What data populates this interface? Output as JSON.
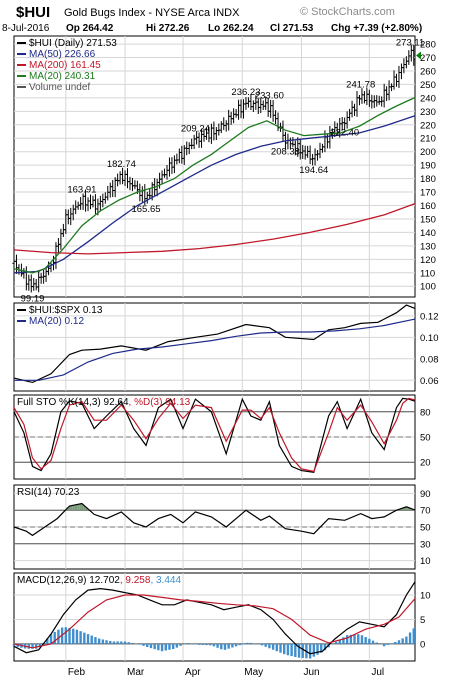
{
  "header": {
    "symbol": "$HUI",
    "name": "Gold Bugs Index - NYSE Arca INDX",
    "watermark": "© StockCharts.com",
    "date": "8-Jul-2016",
    "op": "Op 264.42",
    "hi": "Hi 272.26",
    "lo": "Lo 262.24",
    "cl": "Cl 271.53",
    "chg": "Chg +7.39 (+2.80%)"
  },
  "colors": {
    "price": "#000000",
    "ma50": "#1f2a8a",
    "ma200": "#c0182a",
    "ma20": "#1e7a1e",
    "grid": "#d6d6d6",
    "histogram": "#3f8fcf",
    "up_arrow": "#0a7f0a"
  },
  "chart_data": [
    {
      "type": "line",
      "panel": "price",
      "x_ticks": [
        "Feb",
        "Mar",
        "Apr",
        "May",
        "Jun",
        "Jul"
      ],
      "legend": [
        {
          "label": "$HUI (Daily) 271.53",
          "color": "#000000"
        },
        {
          "label": "MA(50) 226.66",
          "color": "#1f2a8a"
        },
        {
          "label": "MA(200) 161.45",
          "color": "#c0182a"
        },
        {
          "label": "MA(20) 240.31",
          "color": "#1e7a1e"
        },
        {
          "label": "Volume undef",
          "color": "#555555"
        }
      ],
      "y_ticks": [
        100,
        110,
        120,
        130,
        140,
        150,
        160,
        170,
        180,
        190,
        200,
        210,
        220,
        230,
        240,
        250,
        260,
        270,
        280
      ],
      "ylim": [
        92,
        286
      ],
      "annotations": [
        {
          "label": "99.19",
          "t": 15,
          "v": 99.19,
          "pos": "below"
        },
        {
          "label": "163.91",
          "t": 55,
          "v": 163.91,
          "pos": "above"
        },
        {
          "label": "182.74",
          "t": 87,
          "v": 182.74,
          "pos": "above"
        },
        {
          "label": "165.65",
          "t": 107,
          "v": 165.65,
          "pos": "below"
        },
        {
          "label": "209.24",
          "t": 147,
          "v": 209.24,
          "pos": "above"
        },
        {
          "label": "236.23",
          "t": 188,
          "v": 236.23,
          "pos": "above"
        },
        {
          "label": "233.60",
          "t": 207,
          "v": 233.6,
          "pos": "above"
        },
        {
          "label": "208.33",
          "t": 220,
          "v": 208.33,
          "pos": "below"
        },
        {
          "label": "194.64",
          "t": 243,
          "v": 194.64,
          "pos": "below"
        },
        {
          "label": "222.40",
          "t": 268,
          "v": 222.4,
          "pos": "below"
        },
        {
          "label": "241.78",
          "t": 281,
          "v": 241.78,
          "pos": "above"
        },
        {
          "label": "273.11",
          "t": 321,
          "v": 273.11,
          "pos": "above"
        }
      ],
      "series": [
        {
          "name": "$HUI (Daily)",
          "style": "ohlc",
          "t": [
            0,
            15,
            30,
            42,
            55,
            68,
            87,
            107,
            125,
            147,
            165,
            188,
            207,
            220,
            243,
            255,
            268,
            281,
            295,
            310,
            321,
            325
          ],
          "values": [
            117,
            99.19,
            115,
            150,
            163.91,
            160,
            182.74,
            165.65,
            188,
            209.24,
            216,
            236.23,
            233.6,
            208.33,
            194.64,
            212,
            222.4,
            241.78,
            236,
            255,
            273.11,
            271.53
          ]
        },
        {
          "name": "MA(50)",
          "t": [
            0,
            20,
            40,
            60,
            80,
            100,
            120,
            140,
            160,
            180,
            200,
            220,
            240,
            260,
            280,
            300,
            325
          ],
          "values": [
            110,
            111,
            120,
            133,
            147,
            160,
            170,
            180,
            190,
            198,
            204,
            208,
            210,
            212,
            214,
            219,
            226.66
          ]
        },
        {
          "name": "MA(200)",
          "t": [
            0,
            30,
            60,
            90,
            120,
            150,
            180,
            210,
            240,
            270,
            300,
            325
          ],
          "values": [
            127,
            125,
            124,
            125,
            126,
            128,
            131,
            135,
            140,
            146,
            153,
            161.45
          ]
        },
        {
          "name": "MA(20)",
          "t": [
            0,
            15,
            25,
            40,
            55,
            70,
            85,
            100,
            115,
            130,
            145,
            160,
            175,
            190,
            205,
            220,
            235,
            250,
            265,
            280,
            295,
            310,
            325
          ],
          "values": [
            113,
            110,
            113,
            128,
            145,
            156,
            164,
            170,
            174,
            180,
            190,
            198,
            208,
            218,
            223,
            216,
            212,
            213,
            214,
            219,
            227,
            234,
            240.31
          ]
        }
      ]
    },
    {
      "type": "line",
      "panel": "ratio",
      "legend": [
        {
          "label": "$HUI:$SPX 0.13",
          "color": "#000000"
        },
        {
          "label": "MA(20) 0.12",
          "color": "#1f2a8a"
        }
      ],
      "y_ticks": [
        0.06,
        0.08,
        0.1,
        0.12
      ],
      "ylim": [
        0.05,
        0.132
      ],
      "series": [
        {
          "name": "$HUI:$SPX",
          "t": [
            0,
            15,
            30,
            45,
            55,
            70,
            87,
            107,
            125,
            147,
            165,
            188,
            207,
            220,
            243,
            255,
            268,
            281,
            295,
            310,
            318,
            325
          ],
          "values": [
            0.062,
            0.058,
            0.066,
            0.084,
            0.088,
            0.089,
            0.092,
            0.088,
            0.096,
            0.1,
            0.103,
            0.112,
            0.109,
            0.1,
            0.098,
            0.107,
            0.109,
            0.113,
            0.114,
            0.123,
            0.13,
            0.127
          ]
        },
        {
          "name": "MA(20)",
          "t": [
            0,
            20,
            40,
            60,
            80,
            100,
            120,
            140,
            160,
            180,
            200,
            220,
            240,
            260,
            280,
            300,
            325
          ],
          "values": [
            0.06,
            0.06,
            0.065,
            0.077,
            0.085,
            0.089,
            0.091,
            0.094,
            0.097,
            0.101,
            0.104,
            0.105,
            0.105,
            0.106,
            0.108,
            0.111,
            0.117
          ]
        }
      ]
    },
    {
      "type": "line",
      "panel": "stochastic",
      "legend": [
        {
          "label": "Full STO %K(14,3) 92.64",
          "color": "#000000"
        },
        {
          "label": "%D(3) 94.13",
          "color": "#c0182a"
        }
      ],
      "y_ticks": [
        20,
        50,
        80
      ],
      "ylim": [
        0,
        100
      ],
      "series": [
        {
          "name": "%K",
          "t": [
            0,
            8,
            15,
            22,
            30,
            38,
            45,
            55,
            65,
            75,
            87,
            97,
            107,
            117,
            127,
            137,
            147,
            160,
            172,
            185,
            192,
            200,
            207,
            215,
            225,
            233,
            243,
            255,
            262,
            270,
            281,
            290,
            300,
            310,
            315,
            320,
            325
          ],
          "values": [
            80,
            55,
            15,
            10,
            30,
            80,
            93,
            90,
            60,
            75,
            92,
            60,
            40,
            85,
            95,
            60,
            95,
            80,
            30,
            95,
            75,
            70,
            92,
            40,
            15,
            10,
            8,
            75,
            92,
            60,
            95,
            55,
            35,
            85,
            96,
            95,
            92.64
          ]
        },
        {
          "name": "%D",
          "t": [
            0,
            8,
            15,
            22,
            30,
            38,
            45,
            55,
            65,
            75,
            87,
            97,
            107,
            117,
            127,
            137,
            147,
            160,
            172,
            185,
            192,
            200,
            207,
            215,
            225,
            233,
            243,
            255,
            262,
            270,
            281,
            290,
            300,
            310,
            315,
            320,
            325
          ],
          "values": [
            85,
            65,
            25,
            12,
            22,
            60,
            88,
            92,
            70,
            70,
            88,
            70,
            48,
            72,
            90,
            72,
            88,
            85,
            45,
            82,
            82,
            72,
            85,
            55,
            25,
            12,
            9,
            55,
            85,
            70,
            88,
            68,
            42,
            70,
            90,
            96,
            94.13
          ]
        }
      ]
    },
    {
      "type": "line",
      "panel": "rsi",
      "legend": [
        {
          "label": "RSI(14) 70.23",
          "color": "#000000"
        }
      ],
      "y_ticks": [
        10,
        30,
        50,
        70,
        90
      ],
      "ylim": [
        0,
        100
      ],
      "series": [
        {
          "name": "RSI(14)",
          "t": [
            0,
            10,
            15,
            25,
            35,
            45,
            55,
            65,
            75,
            87,
            97,
            107,
            117,
            127,
            137,
            147,
            160,
            172,
            188,
            200,
            207,
            220,
            233,
            243,
            255,
            268,
            281,
            290,
            300,
            310,
            318,
            325
          ],
          "values": [
            50,
            45,
            40,
            50,
            60,
            75,
            78,
            65,
            60,
            68,
            55,
            50,
            60,
            65,
            55,
            68,
            62,
            50,
            70,
            58,
            63,
            48,
            45,
            42,
            60,
            58,
            66,
            60,
            62,
            70,
            74,
            70.23
          ]
        }
      ]
    },
    {
      "type": "line",
      "panel": "macd",
      "legend": [
        {
          "label": "MACD(12,26,9) 12.702",
          "color": "#000000"
        },
        {
          "label": "9.258",
          "color": "#c0182a"
        },
        {
          "label": "3.444",
          "color": "#3f8fcf"
        }
      ],
      "y_ticks": [
        0,
        5,
        10
      ],
      "ylim": [
        -3.5,
        14.5
      ],
      "series": [
        {
          "name": "MACD",
          "t": [
            0,
            10,
            20,
            30,
            40,
            50,
            60,
            70,
            80,
            90,
            100,
            110,
            120,
            130,
            140,
            150,
            160,
            170,
            180,
            190,
            200,
            210,
            220,
            230,
            240,
            250,
            260,
            270,
            280,
            290,
            300,
            310,
            318,
            325
          ],
          "values": [
            -0.5,
            -1.8,
            -1.2,
            2,
            6,
            9,
            11,
            11.3,
            11,
            10.5,
            10,
            9,
            8,
            8,
            9,
            8.5,
            8,
            7,
            7.5,
            8,
            7,
            5,
            2,
            -0.5,
            -2,
            -1.5,
            1,
            3,
            4.5,
            4,
            3.5,
            6,
            10,
            12.702
          ]
        },
        {
          "name": "Signal",
          "t": [
            0,
            15,
            30,
            45,
            60,
            75,
            90,
            105,
            120,
            135,
            150,
            165,
            180,
            195,
            210,
            225,
            240,
            255,
            270,
            285,
            300,
            312,
            325
          ],
          "values": [
            0,
            -0.8,
            0,
            3,
            6.5,
            9,
            10,
            10,
            9.5,
            9,
            8.7,
            8.3,
            8,
            7.8,
            7.2,
            5,
            1.8,
            0.2,
            1.2,
            3,
            4,
            5.5,
            9.258
          ]
        }
      ],
      "histogram": {
        "t": [
          0,
          10,
          20,
          30,
          40,
          50,
          60,
          70,
          80,
          90,
          100,
          110,
          120,
          130,
          140,
          150,
          160,
          170,
          180,
          190,
          200,
          210,
          220,
          230,
          240,
          250,
          260,
          270,
          280,
          290,
          300,
          310,
          318,
          325
        ],
        "values": [
          -0.5,
          -1,
          -1,
          2,
          3.5,
          3,
          2,
          1,
          0.5,
          0.5,
          0,
          -0.8,
          -1.5,
          -1,
          0.2,
          -0.2,
          -0.3,
          -1.3,
          -0.5,
          0.3,
          -0.2,
          -1.2,
          -2.2,
          -2.8,
          -3,
          -1.7,
          0.3,
          1.8,
          2,
          0.8,
          -0.5,
          0.5,
          1.5,
          3.444
        ]
      }
    }
  ]
}
